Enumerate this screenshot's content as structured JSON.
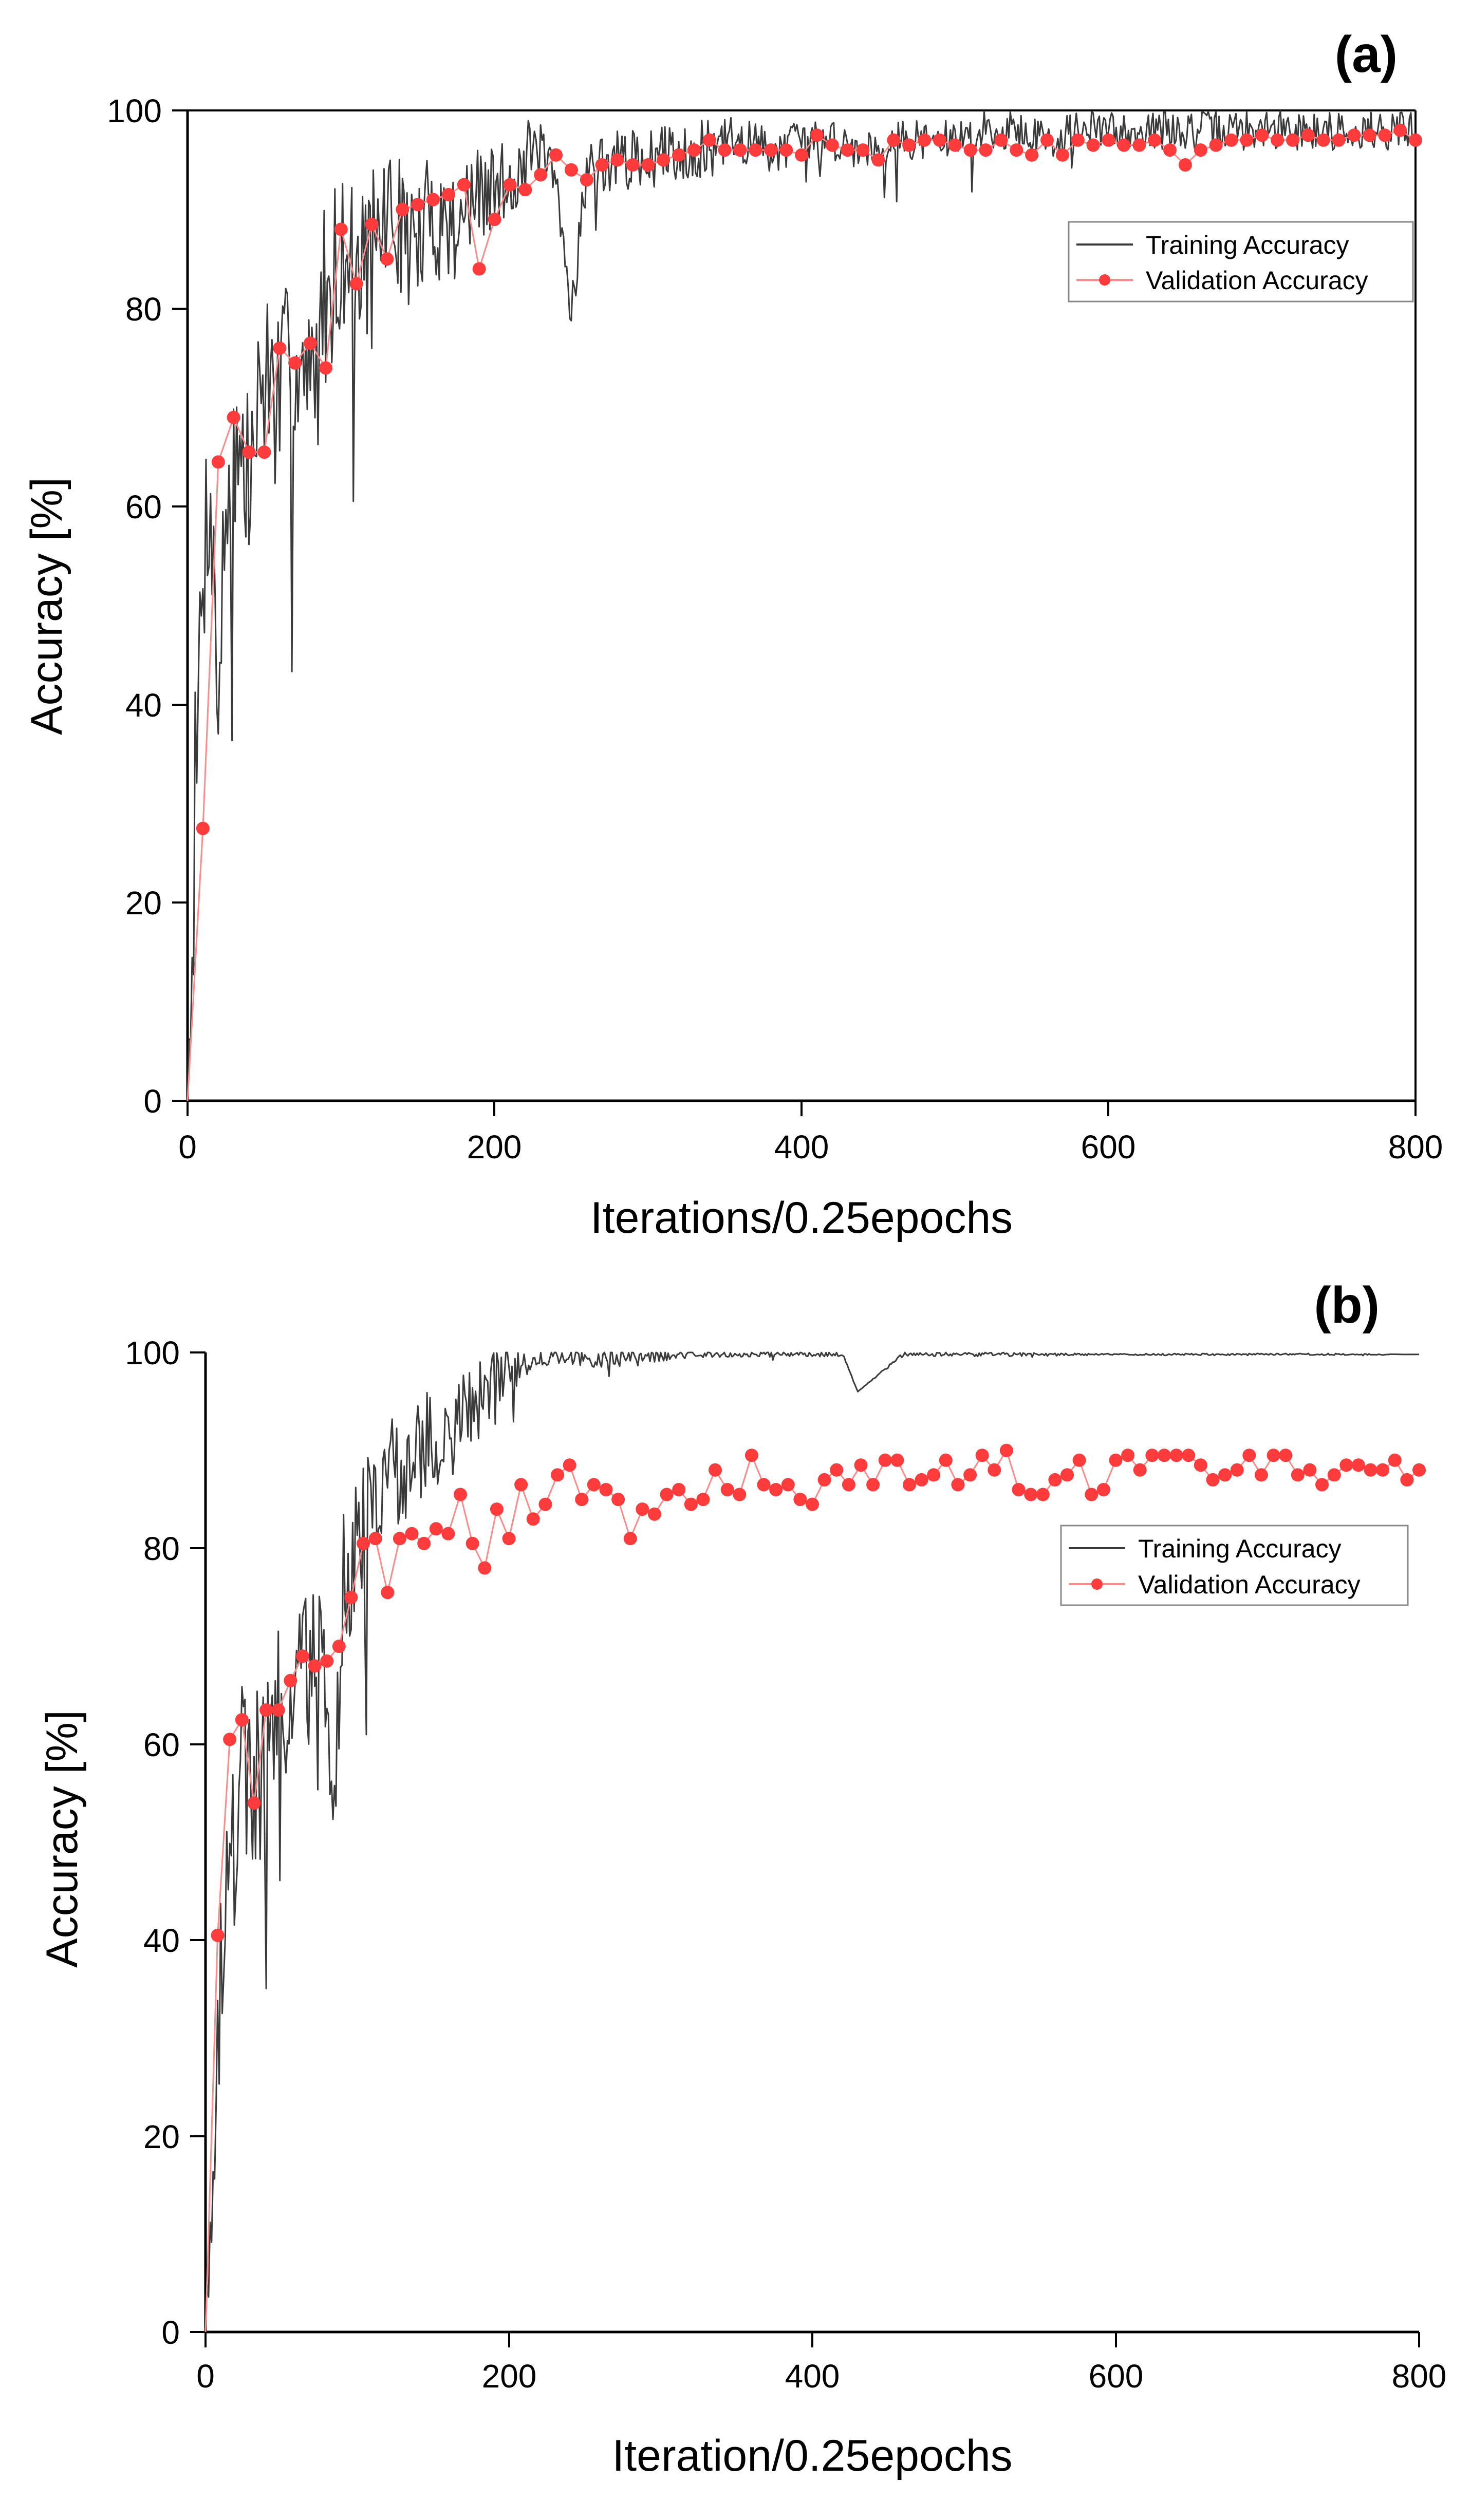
{
  "colors": {
    "training": "#3a3a3a",
    "validation": "#ff3b3b",
    "validation_line": "#ff8a8a",
    "axis": "#000000",
    "background": "#ffffff"
  },
  "chart_data": [
    {
      "type": "line",
      "panel_label": "(a)",
      "title": "",
      "xlabel": "Iterations/0.25epochs",
      "ylabel": "Accuracy [%]",
      "xlim": [
        0,
        800
      ],
      "ylim": [
        0,
        100
      ],
      "xticks": [
        0,
        200,
        400,
        600,
        800
      ],
      "yticks": [
        0,
        20,
        40,
        60,
        80,
        100
      ],
      "grid": false,
      "legend_position": "top-right",
      "series": [
        {
          "name": "Training Accuracy",
          "style": "line",
          "x": [
            0,
            5,
            10,
            15,
            20,
            25,
            30,
            40,
            50,
            60,
            70,
            80,
            90,
            100,
            110,
            120,
            130,
            140,
            150,
            160,
            170,
            180,
            190,
            200,
            210,
            220,
            230,
            240,
            250,
            260,
            280,
            300,
            320,
            340,
            360,
            380,
            400,
            420,
            440,
            460,
            480,
            500,
            520,
            540,
            560,
            580,
            600,
            620,
            640,
            660,
            680,
            700,
            720,
            740,
            760,
            780,
            800
          ],
          "values": [
            0,
            28,
            55,
            62,
            40,
            60,
            66,
            62,
            74,
            70,
            76,
            70,
            82,
            86,
            84,
            86,
            90,
            88,
            86,
            90,
            88,
            90,
            91,
            92,
            93,
            95,
            96,
            92,
            80,
            94,
            95,
            95,
            96,
            96,
            97,
            96,
            97,
            97,
            96,
            97,
            97,
            97,
            98,
            98,
            97,
            98,
            98,
            98,
            98,
            98,
            98,
            98,
            98,
            98,
            98,
            98,
            98
          ],
          "noise": [
            0,
            14,
            12,
            8,
            10,
            10,
            10,
            10,
            10,
            10,
            10,
            10,
            10,
            8,
            8,
            8,
            7,
            7,
            7,
            7,
            6,
            6,
            5,
            5,
            4,
            4,
            3,
            3,
            3,
            3,
            3,
            3,
            3,
            3,
            2.5,
            2.5,
            2,
            2,
            2,
            2,
            2,
            2,
            2,
            2,
            2,
            2,
            2,
            2,
            2,
            2,
            2,
            2,
            2,
            2,
            2,
            2,
            2
          ]
        },
        {
          "name": "Validation Accuracy",
          "style": "line-marker",
          "x": [
            0,
            10,
            20,
            30,
            40,
            50,
            60,
            70,
            80,
            90,
            100,
            110,
            120,
            130,
            140,
            150,
            160,
            170,
            180,
            190,
            200,
            210,
            220,
            230,
            240,
            250,
            260,
            270,
            280,
            290,
            300,
            310,
            320,
            330,
            340,
            350,
            360,
            370,
            380,
            390,
            400,
            410,
            420,
            430,
            440,
            450,
            460,
            470,
            480,
            490,
            500,
            510,
            520,
            530,
            540,
            550,
            560,
            570,
            580,
            590,
            600,
            610,
            620,
            630,
            640,
            650,
            660,
            670,
            680,
            690,
            700,
            710,
            720,
            730,
            740,
            750,
            760,
            770,
            780,
            790,
            800
          ],
          "values": [
            0,
            27.5,
            64.5,
            69,
            65.5,
            65.5,
            76,
            74.5,
            76.5,
            74,
            88,
            82.5,
            88.5,
            85,
            90,
            90.5,
            91,
            91.5,
            92.5,
            84,
            89,
            92.5,
            92,
            93.5,
            95.5,
            94,
            93,
            94.5,
            95,
            94.5,
            94.5,
            95,
            95.5,
            96,
            97,
            96,
            96,
            96,
            96,
            96,
            95.5,
            97.5,
            96.5,
            96,
            96,
            95,
            97,
            96.5,
            97,
            97,
            96.5,
            96,
            96,
            97,
            96,
            95.5,
            97,
            95.5,
            97,
            96.5,
            97,
            96.5,
            96.5,
            97,
            96,
            94.5,
            96,
            96.5,
            97,
            97,
            97.5,
            97,
            97,
            97.5,
            97,
            97,
            97.5,
            97.5,
            97.5,
            98,
            97
          ]
        }
      ]
    },
    {
      "type": "line",
      "panel_label": "(b)",
      "title": "",
      "xlabel": "Iteration/0.25epochs",
      "ylabel": "Accuracy [%]",
      "xlim": [
        0,
        800
      ],
      "ylim": [
        0,
        100
      ],
      "xticks": [
        0,
        200,
        400,
        600,
        800
      ],
      "yticks": [
        0,
        20,
        40,
        60,
        80,
        100
      ],
      "grid": false,
      "legend_position": "top-right",
      "series": [
        {
          "name": "Training Accuracy",
          "style": "line",
          "x": [
            0,
            5,
            10,
            15,
            20,
            25,
            30,
            40,
            50,
            60,
            70,
            80,
            85,
            90,
            100,
            110,
            120,
            130,
            140,
            150,
            160,
            170,
            180,
            190,
            200,
            210,
            220,
            240,
            260,
            280,
            300,
            340,
            380,
            420,
            430,
            460,
            500,
            540,
            580,
            620,
            660,
            700,
            740,
            800
          ],
          "values": [
            0,
            18,
            40,
            45,
            52,
            58,
            55,
            60,
            63,
            67,
            68,
            66,
            52,
            75,
            80,
            84,
            87,
            88,
            90,
            90,
            91,
            94,
            95,
            97,
            98,
            99,
            99.5,
            99.5,
            99.5,
            99.5,
            99.7,
            99.8,
            99.8,
            99.8,
            96,
            99.8,
            99.8,
            99.8,
            99.8,
            99.8,
            99.8,
            99.8,
            99.8,
            99.8
          ],
          "noise": [
            0,
            10,
            12,
            10,
            10,
            10,
            10,
            10,
            9,
            9,
            9,
            9,
            6,
            9,
            8,
            7,
            6,
            6,
            6,
            6,
            5,
            5,
            4,
            3,
            2.5,
            1.5,
            1,
            1,
            1,
            1,
            0.6,
            0.3,
            0.3,
            0.2,
            0,
            0.2,
            0.2,
            0.2,
            0.1,
            0.1,
            0.1,
            0.1,
            0.1,
            0
          ]
        },
        {
          "name": "Validation Accuracy",
          "style": "line-marker",
          "x": [
            0,
            8,
            16,
            24,
            32,
            40,
            48,
            56,
            64,
            72,
            80,
            88,
            96,
            104,
            112,
            120,
            128,
            136,
            144,
            152,
            160,
            168,
            176,
            184,
            192,
            200,
            208,
            216,
            224,
            232,
            240,
            248,
            256,
            264,
            272,
            280,
            288,
            296,
            304,
            312,
            320,
            328,
            336,
            344,
            352,
            360,
            368,
            376,
            384,
            392,
            400,
            408,
            416,
            424,
            432,
            440,
            448,
            456,
            464,
            472,
            480,
            488,
            496,
            504,
            512,
            520,
            528,
            536,
            544,
            552,
            560,
            568,
            576,
            584,
            592,
            600,
            608,
            616,
            624,
            632,
            640,
            648,
            656,
            664,
            672,
            680,
            688,
            696,
            704,
            712,
            720,
            728,
            736,
            744,
            752,
            760,
            768,
            776,
            784,
            792,
            800
          ],
          "values": [
            0,
            40.5,
            60.5,
            62.5,
            54,
            63.5,
            63.5,
            66.5,
            69,
            68,
            68.5,
            70,
            75,
            80.5,
            81,
            75.5,
            81,
            81.5,
            80.5,
            82,
            81.5,
            85.5,
            80.5,
            78,
            84,
            81,
            86.5,
            83,
            84.5,
            87.5,
            88.5,
            85,
            86.5,
            86,
            85,
            81,
            84,
            83.5,
            85.5,
            86,
            84.5,
            85,
            88,
            86,
            85.5,
            89.5,
            86.5,
            86,
            86.5,
            85,
            84.5,
            87,
            88,
            86.5,
            88.5,
            86.5,
            89,
            89,
            86.5,
            87,
            87.5,
            89,
            86.5,
            87.5,
            89.5,
            88,
            90,
            86,
            85.5,
            85.5,
            87,
            87.5,
            89,
            85.5,
            86,
            89,
            89.5,
            88,
            89.5,
            89.5,
            89.5,
            89.5,
            88.5,
            87,
            87.5,
            88,
            89.5,
            87.5,
            89.5,
            89.5,
            87.5,
            88,
            86.5,
            87.5,
            88.5,
            88.5,
            88,
            88,
            89,
            87,
            88
          ]
        }
      ]
    }
  ]
}
